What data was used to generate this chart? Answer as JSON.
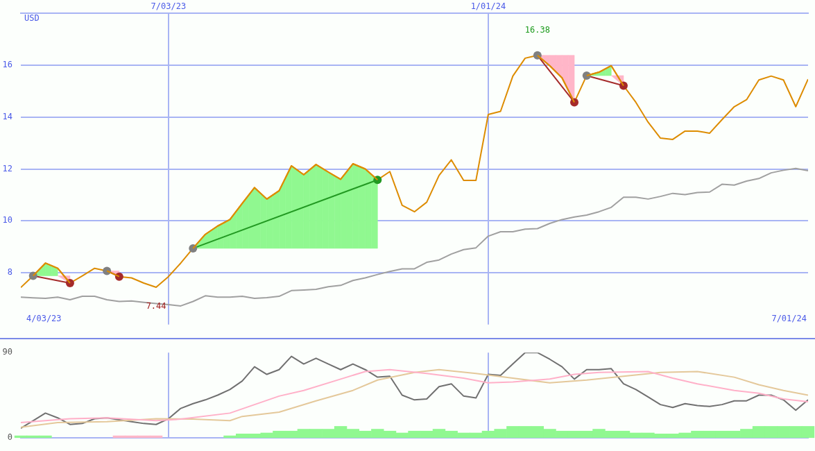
{
  "chart_data": [
    {
      "type": "line",
      "ylabel": "USD",
      "xlim": [
        "2023-04-10",
        "2024-07-01"
      ],
      "xticks": [
        {
          "value": "2023-07-03",
          "label": "7/03/23"
        },
        {
          "value": "2024-01-01",
          "label": "1/01/24"
        }
      ],
      "ylim": [
        6,
        18
      ],
      "yticks": [
        8,
        10,
        12,
        14,
        16
      ],
      "grid": true,
      "legend": false,
      "marker": "none",
      "x": [
        "2023-04-10",
        "2023-04-17",
        "2023-04-24",
        "2023-05-01",
        "2023-05-08",
        "2023-05-15",
        "2023-05-22",
        "2023-05-29",
        "2023-06-05",
        "2023-06-12",
        "2023-06-19",
        "2023-06-26",
        "2023-07-03",
        "2023-07-10",
        "2023-07-17",
        "2023-07-24",
        "2023-07-31",
        "2023-08-07",
        "2023-08-14",
        "2023-08-21",
        "2023-08-28",
        "2023-09-04",
        "2023-09-11",
        "2023-09-18",
        "2023-09-25",
        "2023-10-02",
        "2023-10-09",
        "2023-10-16",
        "2023-10-23",
        "2023-10-30",
        "2023-11-06",
        "2023-11-13",
        "2023-11-20",
        "2023-11-27",
        "2023-12-04",
        "2023-12-11",
        "2023-12-18",
        "2023-12-25",
        "2024-01-01",
        "2024-01-08",
        "2024-01-15",
        "2024-01-22",
        "2024-01-29",
        "2024-02-05",
        "2024-02-12",
        "2024-02-19",
        "2024-02-26",
        "2024-03-04",
        "2024-03-11",
        "2024-03-18",
        "2024-03-25",
        "2024-04-01",
        "2024-04-08",
        "2024-04-15",
        "2024-04-22",
        "2024-04-29",
        "2024-05-06",
        "2024-05-13",
        "2024-05-20",
        "2024-05-27",
        "2024-06-03",
        "2024-06-10",
        "2024-06-17",
        "2024-06-24",
        "2024-07-01"
      ],
      "series": [
        {
          "color": "#a0a0a0",
          "values": [
            7.06,
            7.03,
            7.01,
            7.06,
            6.96,
            7.09,
            7.09,
            6.96,
            6.89,
            6.91,
            6.86,
            6.81,
            6.77,
            6.72,
            6.89,
            7.11,
            7.06,
            7.06,
            7.09,
            7.01,
            7.04,
            7.09,
            7.31,
            7.33,
            7.36,
            7.46,
            7.51,
            7.7,
            7.8,
            7.93,
            8.05,
            8.15,
            8.15,
            8.4,
            8.49,
            8.72,
            8.89,
            8.96,
            9.41,
            9.58,
            9.58,
            9.68,
            9.7,
            9.9,
            10.05,
            10.15,
            10.22,
            10.35,
            10.52,
            10.91,
            10.91,
            10.84,
            10.94,
            11.06,
            11.01,
            11.09,
            11.11,
            11.41,
            11.38,
            11.53,
            11.63,
            11.85,
            11.95,
            12.02,
            11.93
          ]
        },
        {
          "color": "#dd8c00",
          "values": [
            7.43,
            7.88,
            8.37,
            8.17,
            7.6,
            7.88,
            8.17,
            8.07,
            7.85,
            7.8,
            7.6,
            7.44,
            7.85,
            8.37,
            8.94,
            9.48,
            9.8,
            10.05,
            10.67,
            11.28,
            10.84,
            11.16,
            12.12,
            11.78,
            12.17,
            11.88,
            11.6,
            12.2,
            12.0,
            11.58,
            11.9,
            10.6,
            10.35,
            10.72,
            11.75,
            12.35,
            11.56,
            11.56,
            14.1,
            14.22,
            15.58,
            16.27,
            16.38,
            15.98,
            15.51,
            14.57,
            15.6,
            15.73,
            15.98,
            15.21,
            14.57,
            13.8,
            13.19,
            13.14,
            13.46,
            13.46,
            13.38,
            13.9,
            14.4,
            14.67,
            15.43,
            15.58,
            15.43,
            14.4,
            15.46
          ]
        },
        {
          "color": "#dd8c00",
          "x": [
            "2023-04-17",
            "2023-04-24",
            "2023-05-01"
          ],
          "values": [
            7.88,
            8.37,
            8.17
          ],
          "lower": [
            7.88,
            7.88,
            7.88
          ],
          "upper": [
            7.88,
            8.37,
            8.17
          ],
          "colors": [
            "#90f890",
            "#90f890",
            "#90f890"
          ]
        },
        {
          "color": "#dd8c00",
          "x": [
            "2023-05-01",
            "2023-05-08"
          ],
          "values": [
            8.17,
            7.6
          ],
          "lower": [
            7.88,
            7.6
          ],
          "upper": [
            7.88,
            7.88
          ],
          "colors": [
            "#ffb6c8",
            "#ffb6c8"
          ]
        },
        {
          "color": "#dd8c00",
          "x": [
            "2023-05-29",
            "2023-06-05"
          ],
          "values": [
            8.07,
            7.85
          ],
          "lower": [
            8.07,
            7.85
          ],
          "upper": [
            8.07,
            8.07
          ],
          "colors": [
            "#ffb6c8",
            "#ffb6c8"
          ]
        },
        {
          "color": "#dd8c00",
          "x": [
            "2023-07-17",
            "2023-07-24",
            "2023-07-31",
            "2023-08-07",
            "2023-08-14",
            "2023-08-21",
            "2023-08-28",
            "2023-09-04",
            "2023-09-11",
            "2023-09-18",
            "2023-09-25",
            "2023-10-02",
            "2023-10-09",
            "2023-10-16",
            "2023-10-23",
            "2023-10-30"
          ],
          "values": [
            8.94,
            9.48,
            9.8,
            10.05,
            10.67,
            11.28,
            10.84,
            11.16,
            12.12,
            11.78,
            12.17,
            11.88,
            11.6,
            12.2,
            12.0,
            11.58
          ],
          "lower": [
            8.94,
            8.94,
            8.94,
            8.94,
            8.94,
            8.94,
            8.94,
            8.94,
            8.94,
            8.94,
            8.94,
            8.94,
            8.94,
            8.94,
            8.94,
            8.94
          ],
          "upper": [
            8.94,
            9.48,
            9.8,
            10.05,
            10.67,
            11.28,
            10.84,
            11.16,
            12.12,
            11.78,
            12.17,
            11.88,
            11.6,
            12.2,
            12.0,
            11.58
          ],
          "colors": [
            "#90f890",
            "#90f890",
            "#90f890",
            "#90f890",
            "#90f890",
            "#90f890",
            "#90f890",
            "#90f890",
            "#90f890",
            "#90f890",
            "#90f890",
            "#90f890",
            "#90f890",
            "#90f890",
            "#90f890",
            "#90f890"
          ]
        },
        {
          "color": "#dd8c00",
          "x": [
            "2024-01-29",
            "2024-02-05",
            "2024-02-12",
            "2024-02-19"
          ],
          "values": [
            16.38,
            15.98,
            15.51,
            14.57
          ],
          "lower": [
            16.38,
            15.98,
            15.51,
            14.57
          ],
          "upper": [
            16.38,
            16.38,
            16.38,
            16.38
          ],
          "colors": [
            "#ffb6c8",
            "#ffb6c8",
            "#ffb6c8",
            "#ffb6c8"
          ]
        },
        {
          "color": "#dd8c00",
          "x": [
            "2024-02-26",
            "2024-03-04",
            "2024-03-11"
          ],
          "values": [
            15.6,
            15.73,
            15.98
          ],
          "lower": [
            15.6,
            15.6,
            15.6
          ],
          "upper": [
            15.6,
            15.73,
            15.98
          ],
          "colors": [
            "#90f890",
            "#90f890",
            "#90f890"
          ]
        },
        {
          "color": "#dd8c00",
          "x": [
            "2024-03-11",
            "2024-03-18"
          ],
          "values": [
            15.98,
            15.21
          ],
          "lower": [
            15.6,
            15.21
          ],
          "upper": [
            15.6,
            15.6
          ],
          "colors": [
            "#ffb6c8",
            "#ffb6c8"
          ]
        },
        {
          "color": "#a52a2a",
          "marker": "circle",
          "x": [
            "2023-04-17",
            "2023-05-08"
          ],
          "values": [
            7.88,
            7.6
          ],
          "colors": [
            "#808080",
            "#a52a2a"
          ]
        },
        {
          "color": "#a52a2a",
          "marker": "circle",
          "x": [
            "2023-05-29",
            "2023-06-05"
          ],
          "values": [
            8.07,
            7.85
          ],
          "colors": [
            "#808080",
            "#a52a2a"
          ]
        },
        {
          "color": "#229922",
          "marker": "circle",
          "x": [
            "2023-07-17",
            "2023-10-30"
          ],
          "values": [
            8.94,
            11.58
          ],
          "colors": [
            "#808080",
            "#229922"
          ]
        },
        {
          "color": "#a52a2a",
          "marker": "circle",
          "x": [
            "2024-01-29",
            "2024-02-19"
          ],
          "values": [
            16.38,
            14.57
          ],
          "colors": [
            "#808080",
            "#a52a2a"
          ]
        },
        {
          "color": "#a52a2a",
          "marker": "circle",
          "x": [
            "2024-02-26",
            "2024-03-18"
          ],
          "values": [
            15.6,
            15.21
          ],
          "colors": [
            "#808080",
            "#a52a2a"
          ]
        }
      ],
      "annotations": [
        "4/03/23",
        "7/01/24",
        {
          "text": "16.38",
          "x": "2024-01-29",
          "y": 16.38
        },
        {
          "text": "7.44",
          "x": "2023-06-26",
          "y": 7.44
        }
      ]
    },
    {
      "type": "line",
      "xlim": [
        "2023-04-10",
        "2024-07-01"
      ],
      "xticks": [
        {
          "value": "2023-07-03",
          "label": null
        },
        {
          "value": "2024-01-01",
          "label": null
        }
      ],
      "ylim": [
        0,
        90
      ],
      "yticks": [
        0,
        90
      ],
      "grid": "x",
      "legend": false,
      "marker": "none",
      "tick_labels": "y",
      "x": [
        "2023-04-10",
        "2023-04-17",
        "2023-04-24",
        "2023-05-01",
        "2023-05-08",
        "2023-05-15",
        "2023-05-22",
        "2023-05-29",
        "2023-06-05",
        "2023-06-12",
        "2023-06-19",
        "2023-06-26",
        "2023-07-03",
        "2023-07-10",
        "2023-07-17",
        "2023-07-24",
        "2023-07-31",
        "2023-08-07",
        "2023-08-14",
        "2023-08-21",
        "2023-08-28",
        "2023-09-04",
        "2023-09-11",
        "2023-09-18",
        "2023-09-25",
        "2023-10-02",
        "2023-10-09",
        "2023-10-16",
        "2023-10-23",
        "2023-10-30",
        "2023-11-06",
        "2023-11-13",
        "2023-11-20",
        "2023-11-27",
        "2023-12-04",
        "2023-12-11",
        "2023-12-18",
        "2023-12-25",
        "2024-01-01",
        "2024-01-08",
        "2024-01-15",
        "2024-01-22",
        "2024-01-29",
        "2024-02-05",
        "2024-02-12",
        "2024-02-19",
        "2024-02-26",
        "2024-03-04",
        "2024-03-11",
        "2024-03-18",
        "2024-03-25",
        "2024-04-01",
        "2024-04-08",
        "2024-04-15",
        "2024-04-22",
        "2024-04-29",
        "2024-05-06",
        "2024-05-13",
        "2024-05-20",
        "2024-05-27",
        "2024-06-03",
        "2024-06-10",
        "2024-06-17",
        "2024-06-24",
        "2024-07-01"
      ],
      "series": [
        {
          "type": "bar",
          "colors": [
            "#90f890",
            "#90f890",
            "#90f890",
            "#90f890",
            "#90f890",
            "#90f890",
            "#90f890",
            "#90f890",
            "#ffb6c8",
            "#ffb6c8",
            "#ffb6c8",
            "#ffb6c8",
            "#90f890",
            "#90f890",
            "#90f890",
            "#90f890",
            "#90f890",
            "#90f890",
            "#90f890",
            "#90f890",
            "#90f890",
            "#90f890",
            "#90f890",
            "#90f890",
            "#90f890",
            "#90f890",
            "#90f890",
            "#90f890",
            "#90f890",
            "#90f890",
            "#90f890",
            "#90f890",
            "#90f890",
            "#90f890",
            "#90f890",
            "#90f890",
            "#90f890",
            "#90f890",
            "#90f890",
            "#90f890",
            "#90f890",
            "#90f890",
            "#90f890",
            "#90f890",
            "#90f890",
            "#90f890",
            "#90f890",
            "#90f890",
            "#90f890",
            "#90f890",
            "#90f890",
            "#90f890",
            "#90f890",
            "#90f890",
            "#90f890",
            "#90f890",
            "#90f890",
            "#90f890",
            "#90f890",
            "#90f890",
            "#90f890",
            "#90f890",
            "#90f890",
            "#90f890",
            "#90f890"
          ],
          "values": [
            2,
            2,
            2,
            null,
            null,
            null,
            null,
            null,
            2,
            2,
            2,
            2,
            null,
            null,
            null,
            null,
            null,
            2,
            4,
            4,
            5,
            7,
            7,
            9,
            9,
            9,
            12,
            9,
            7,
            9,
            7,
            5,
            7,
            7,
            9,
            7,
            5,
            5,
            7,
            9,
            12,
            12,
            12,
            9,
            7,
            7,
            7,
            9,
            7,
            7,
            5,
            5,
            4,
            4,
            5,
            7,
            7,
            7,
            7,
            9,
            12,
            12,
            12,
            12,
            12
          ]
        },
        {
          "color": "#ffb0c8",
          "x": [
            "2023-04-10",
            "2023-05-08",
            "2023-05-29",
            "2023-06-26",
            "2023-07-10",
            "2023-08-07",
            "2023-09-04",
            "2023-09-18",
            "2023-10-09",
            "2023-10-23",
            "2023-11-06",
            "2023-11-27",
            "2023-12-18",
            "2024-01-01",
            "2024-01-15",
            "2024-02-05",
            "2024-02-19",
            "2024-03-04",
            "2024-04-01",
            "2024-04-15",
            "2024-04-29",
            "2024-05-20",
            "2024-06-03",
            "2024-06-17",
            "2024-07-01"
          ],
          "values": [
            16,
            20,
            21,
            18,
            19.6,
            26,
            44,
            50,
            62,
            70,
            72,
            68,
            63,
            58,
            59,
            62,
            67,
            69,
            70,
            63,
            57,
            50,
            47,
            41,
            38
          ]
        },
        {
          "color": "#e4c89a",
          "x": [
            "2023-04-10",
            "2023-05-01",
            "2023-05-29",
            "2023-06-26",
            "2023-07-17",
            "2023-08-07",
            "2023-08-14",
            "2023-09-04",
            "2023-09-25",
            "2023-10-16",
            "2023-10-30",
            "2023-11-20",
            "2023-12-04",
            "2023-12-25",
            "2024-01-15",
            "2024-02-05",
            "2024-02-26",
            "2024-03-18",
            "2024-04-08",
            "2024-04-29",
            "2024-05-20",
            "2024-06-03",
            "2024-06-17",
            "2024-07-01"
          ],
          "values": [
            11,
            16,
            17,
            20,
            19.6,
            18,
            22.5,
            27,
            39,
            50,
            61,
            69,
            72,
            68,
            63,
            58,
            61,
            65,
            69,
            70,
            64,
            56,
            50,
            45
          ]
        },
        {
          "color": "#707070",
          "values": [
            10,
            18,
            26,
            21,
            14,
            15,
            20,
            21,
            19,
            17,
            15,
            14,
            20,
            31,
            36,
            40,
            45,
            51,
            60,
            75,
            67,
            72,
            86,
            78,
            84,
            78,
            72,
            78,
            72,
            64,
            65,
            45,
            40,
            41,
            54,
            57,
            44,
            42,
            67,
            66,
            78,
            90,
            90,
            83,
            75,
            62,
            72,
            72,
            73,
            57,
            51,
            43,
            35,
            32,
            36,
            34,
            33,
            35,
            39,
            39,
            45,
            45,
            40,
            29,
            40
          ]
        }
      ]
    }
  ]
}
